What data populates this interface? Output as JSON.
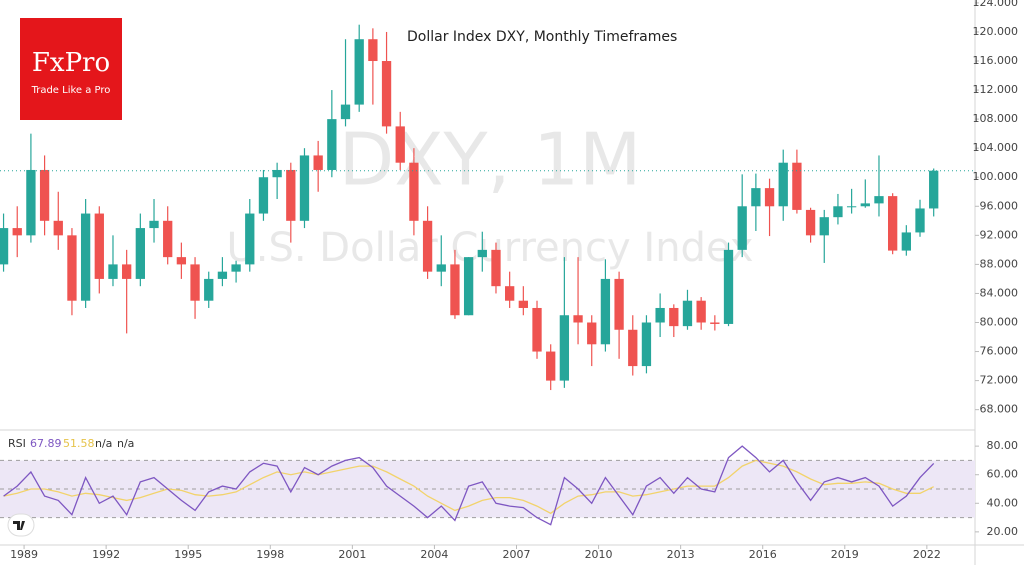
{
  "brand": {
    "name": "FxPro",
    "tagline": "Trade Like a Pro"
  },
  "chart_data": [
    {
      "type": "candlestick",
      "title": "Dollar Index DXY, Monthly Timeframes",
      "watermark": "DXY, 1M",
      "subtitle": "U.S. Dollar Currency Index",
      "up_color": "#26a69a",
      "down_color": "#ef5350",
      "last_price_line": true,
      "x": [
        1988.25,
        1988.75,
        1989.25,
        1989.75,
        1990.25,
        1990.75,
        1991.25,
        1991.75,
        1992.25,
        1992.75,
        1993.25,
        1993.75,
        1994.25,
        1994.75,
        1995.25,
        1995.75,
        1996.25,
        1996.75,
        1997.25,
        1997.75,
        1998.25,
        1998.75,
        1999.25,
        1999.75,
        2000.25,
        2000.75,
        2001.25,
        2001.75,
        2002.25,
        2002.75,
        2003.25,
        2003.75,
        2004.25,
        2004.75,
        2005.25,
        2005.75,
        2006.25,
        2006.75,
        2007.25,
        2007.75,
        2008.25,
        2008.75,
        2009.25,
        2009.75,
        2010.25,
        2010.75,
        2011.25,
        2011.75,
        2012.25,
        2012.75,
        2013.25,
        2013.75,
        2014.25,
        2014.75,
        2015.25,
        2015.75,
        2016.25,
        2016.75,
        2017.25,
        2017.75,
        2018.25,
        2018.75,
        2019.25,
        2019.75,
        2020.25,
        2020.75,
        2021.25,
        2021.75,
        2022.25
      ],
      "open": [
        88,
        93,
        92,
        101,
        94,
        92,
        83,
        95,
        86,
        88,
        86,
        93,
        94,
        89,
        88,
        83,
        86,
        87,
        88,
        95,
        100,
        101,
        94,
        103,
        101,
        108,
        110,
        119,
        116,
        107,
        102,
        94,
        87,
        88,
        81,
        89,
        90,
        85,
        83,
        82,
        76,
        72,
        81,
        80,
        77,
        86,
        79,
        74,
        80,
        82,
        79.5,
        83,
        80,
        79.8,
        90,
        96,
        98.5,
        96,
        102,
        95.5,
        92,
        94.5,
        96,
        96,
        96.4,
        97.4,
        89.9,
        92.4,
        95.7
      ],
      "high": [
        95,
        96,
        106,
        103,
        98,
        93,
        97,
        96,
        92,
        90,
        95,
        97,
        96,
        91,
        89,
        87,
        89,
        88.5,
        97,
        101,
        102,
        102,
        104,
        105,
        112,
        119,
        121,
        120.5,
        120,
        109,
        104,
        96,
        92,
        90,
        89,
        92.5,
        91,
        87,
        85,
        83,
        77,
        89,
        89,
        81,
        88.7,
        87,
        81,
        81,
        84,
        82.5,
        84.5,
        83.5,
        81,
        91,
        100.4,
        100.5,
        99.8,
        103.8,
        103.8,
        95.8,
        95.5,
        97.7,
        98.4,
        99.7,
        103,
        97.8,
        93.4,
        96.9,
        101.2
      ],
      "low": [
        87,
        89,
        91,
        92,
        90,
        81,
        82,
        84,
        85,
        78.5,
        85,
        91,
        88,
        86,
        80.5,
        82,
        85,
        85.5,
        87,
        94,
        97,
        91,
        93,
        98,
        100,
        107,
        109,
        110,
        106,
        101,
        92,
        86,
        85,
        80.5,
        81,
        87,
        84,
        82,
        81,
        75,
        70.7,
        71,
        77,
        74,
        76,
        75,
        72.7,
        73,
        78,
        78,
        79,
        79,
        78.9,
        79.5,
        89,
        92.6,
        91.9,
        94,
        95,
        91,
        88.2,
        93.5,
        95,
        95.8,
        94.6,
        89.4,
        89.2,
        91.8,
        94.6
      ],
      "close": [
        93,
        92,
        101,
        94,
        92,
        83,
        95,
        86,
        88,
        86,
        93,
        94,
        89,
        88,
        83,
        86,
        87,
        88,
        95,
        100,
        101,
        94,
        103,
        101,
        108,
        110,
        119,
        116,
        107,
        102,
        94,
        87,
        88,
        81,
        89,
        90,
        85,
        83,
        82,
        76,
        72,
        81,
        80,
        77,
        86,
        79,
        74,
        80,
        82,
        79.5,
        83,
        80,
        79.8,
        90,
        96,
        98.5,
        96,
        102,
        95.5,
        92,
        94.5,
        96,
        96,
        96.4,
        97.4,
        89.9,
        92.4,
        95.7,
        100.9
      ],
      "xlim": [
        1988.12,
        2023.76
      ],
      "xticks": [
        1989,
        1992,
        1995,
        1998,
        2001,
        2004,
        2007,
        2010,
        2013,
        2016,
        2019,
        2022
      ],
      "ylim": [
        65.2,
        124.4
      ],
      "yticks": [
        {
          "value": 68,
          "label": "68.000"
        },
        {
          "value": 72,
          "label": "72.000"
        },
        {
          "value": 76,
          "label": "76.000"
        },
        {
          "value": 80,
          "label": "80.000"
        },
        {
          "value": 84,
          "label": "84.000"
        },
        {
          "value": 88,
          "label": "88.000"
        },
        {
          "value": 92,
          "label": "92.000"
        },
        {
          "value": 96,
          "label": "96.000"
        },
        {
          "value": 100,
          "label": "100.000"
        },
        {
          "value": 104,
          "label": "104.000"
        },
        {
          "value": 108,
          "label": "108.000"
        },
        {
          "value": 112,
          "label": "112.000"
        },
        {
          "value": 116,
          "label": "116.000"
        },
        {
          "value": 120,
          "label": "120.000"
        },
        {
          "value": 124,
          "label": "124.000"
        }
      ]
    },
    {
      "type": "line",
      "label": "RSI",
      "status_labels": [
        "n/a",
        "n/a"
      ],
      "x": [
        1988.25,
        1988.75,
        1989.25,
        1989.75,
        1990.25,
        1990.75,
        1991.25,
        1991.75,
        1992.25,
        1992.75,
        1993.25,
        1993.75,
        1994.25,
        1994.75,
        1995.25,
        1995.75,
        1996.25,
        1996.75,
        1997.25,
        1997.75,
        1998.25,
        1998.75,
        1999.25,
        1999.75,
        2000.25,
        2000.75,
        2001.25,
        2001.75,
        2002.25,
        2002.75,
        2003.25,
        2003.75,
        2004.25,
        2004.75,
        2005.25,
        2005.75,
        2006.25,
        2006.75,
        2007.25,
        2007.75,
        2008.25,
        2008.75,
        2009.25,
        2009.75,
        2010.25,
        2010.75,
        2011.25,
        2011.75,
        2012.25,
        2012.75,
        2013.25,
        2013.75,
        2014.25,
        2014.75,
        2015.25,
        2015.75,
        2016.25,
        2016.75,
        2017.25,
        2017.75,
        2018.25,
        2018.75,
        2019.25,
        2019.75,
        2020.25,
        2020.75,
        2021.25,
        2021.75,
        2022.25
      ],
      "series": [
        {
          "color": "#7e57c2",
          "values": [
            45,
            52,
            62,
            45,
            42,
            32,
            58,
            40,
            45,
            32,
            55,
            58,
            50,
            42,
            35,
            48,
            52,
            50,
            62,
            68,
            66,
            48,
            65,
            60,
            66,
            70,
            72,
            65,
            52,
            45,
            38,
            30,
            38,
            28,
            52,
            55,
            40,
            38,
            37,
            30,
            25,
            58,
            50,
            40,
            58,
            45,
            32,
            52,
            58,
            47,
            58,
            50,
            48,
            72,
            80,
            72,
            62,
            70,
            55,
            42,
            55,
            58,
            55,
            58,
            52,
            38,
            45,
            58,
            67.89
          ]
        },
        {
          "color": "#f2d36b",
          "values": [
            45,
            47,
            50,
            50,
            48,
            45,
            47,
            46,
            44,
            42,
            44,
            47,
            50,
            49,
            46,
            45,
            46,
            48,
            53,
            58,
            62,
            60,
            62,
            60,
            62,
            64,
            66,
            66,
            62,
            57,
            52,
            45,
            40,
            35,
            38,
            42,
            44,
            44,
            42,
            38,
            33,
            40,
            45,
            46,
            48,
            48,
            45,
            46,
            48,
            50,
            52,
            52,
            52,
            58,
            66,
            70,
            68,
            66,
            62,
            57,
            53,
            54,
            54,
            55,
            54,
            50,
            47,
            47,
            51.58
          ]
        }
      ],
      "levels": [
        30,
        50,
        70
      ],
      "band_color": "#ede7f6",
      "xlim": [
        1988.12,
        2023.76
      ],
      "ylim": [
        10.8,
        90.6
      ],
      "yticks": [
        {
          "value": 20,
          "label": "20.00"
        },
        {
          "value": 40,
          "label": "40.00"
        },
        {
          "value": 60,
          "label": "60.00"
        },
        {
          "value": 80,
          "label": "80.00"
        }
      ]
    }
  ]
}
